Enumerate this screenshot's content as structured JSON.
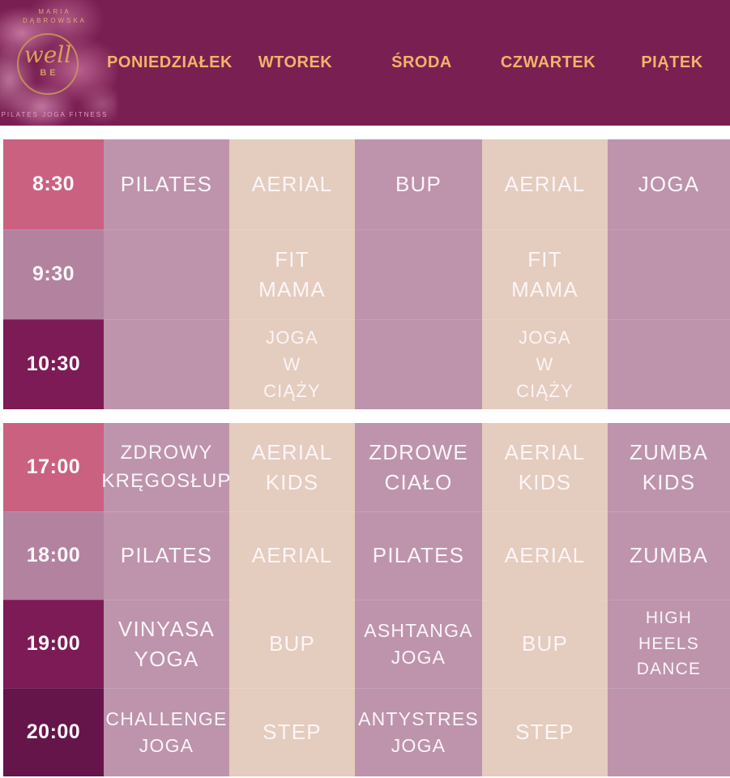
{
  "logo": {
    "brand_line1": "MARIA",
    "brand_line2": "DĄBROWSKA",
    "mark_script": "well",
    "mark_sub": "BE",
    "tagline": "PILATES  JOGA  FITNESS"
  },
  "days": [
    "PONIEDZIAŁEK",
    "WTOREK",
    "ŚRODA",
    "CZWARTEK",
    "PIĄTEK"
  ],
  "schedule": {
    "morning": [
      {
        "time": "8:30",
        "events": [
          "PILATES",
          "AERIAL",
          "BUP",
          "AERIAL",
          "JOGA"
        ]
      },
      {
        "time": "9:30",
        "events": [
          "",
          "FIT\nMAMA",
          "",
          "FIT\nMAMA",
          ""
        ]
      },
      {
        "time": "10:30",
        "events": [
          "",
          "JOGA\nW\nCIĄŻY",
          "",
          "JOGA\nW\nCIĄŻY",
          ""
        ]
      }
    ],
    "evening": [
      {
        "time": "17:00",
        "events": [
          "ZDROWY\nKRĘGOSŁUP",
          "AERIAL\nKIDS",
          "ZDROWE\nCIAŁO",
          "AERIAL\nKIDS",
          "ZUMBA\nKIDS"
        ]
      },
      {
        "time": "18:00",
        "events": [
          "PILATES",
          "AERIAL",
          "PILATES",
          "AERIAL",
          "ZUMBA"
        ]
      },
      {
        "time": "19:00",
        "events": [
          "VINYASA\nYOGA",
          "BUP",
          "ASHTANGA\nJOGA",
          "BUP",
          "HIGH\nHEELS\nDANCE"
        ]
      },
      {
        "time": "20:00",
        "events": [
          "CHALLENGE\nJOGA",
          "STEP",
          "ANTYSTRES\nJOGA",
          "STEP",
          ""
        ]
      }
    ]
  },
  "colors": {
    "header_bg": "#7a1f52",
    "day_text": "#f0b469",
    "time_pink": "#ca6181",
    "time_mauve": "#b2829f",
    "time_dark": "#7c1b56",
    "time_darkest": "#65154a",
    "cell_mauve": "#bd94ac",
    "cell_beige": "#e4ccbe",
    "event_text": "#fbf5f8",
    "logo_gold": "#cf9a5d",
    "tagline_pink": "#e29fbe"
  }
}
